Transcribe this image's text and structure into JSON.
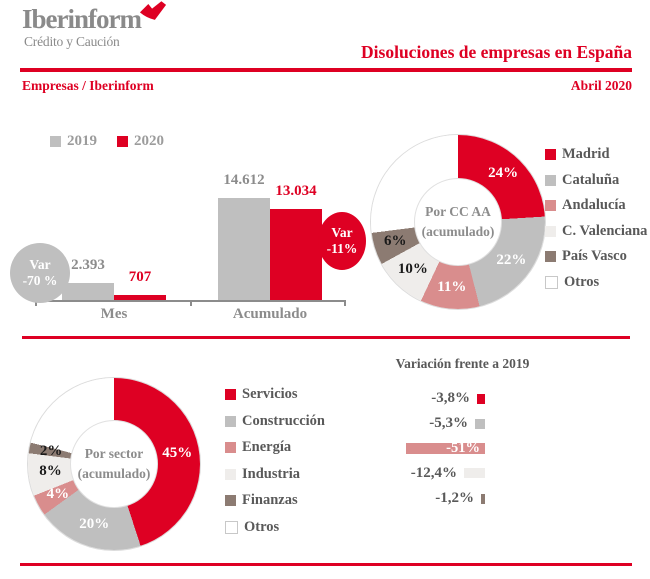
{
  "brand": {
    "name": "Iberinform",
    "tagline": "Crédito y Caución",
    "logo_mark_icon": "red-checkmark"
  },
  "header": {
    "title": "Disoluciones de empresas en España",
    "breadcrumb": "Empresas / Iberinform",
    "date": "Abril 2020"
  },
  "colors": {
    "brand_red": "#DE0023",
    "gray": "#BFBFBF",
    "pink": "#D98D8D",
    "light_gray": "#EFEDEB",
    "taupe": "#8C7B72",
    "white": "#FFFFFF",
    "text_dark_gray": "#595959",
    "text_mid_gray": "#8C8C8C"
  },
  "chart_data": [
    {
      "id": "dissolutions-grouped-bar",
      "type": "bar",
      "legend": [
        {
          "name": "2019",
          "color": "#BFBFBF"
        },
        {
          "name": "2020",
          "color": "#DE0023"
        }
      ],
      "categories": [
        "Mes",
        "Acumulado"
      ],
      "series": [
        {
          "name": "2019",
          "values": [
            2393,
            14612
          ],
          "labels": [
            "2.393",
            "14.612"
          ],
          "color": "#BFBFBF",
          "label_color": "#8C8C8C"
        },
        {
          "name": "2020",
          "values": [
            707,
            13034
          ],
          "labels": [
            "707",
            "13.034"
          ],
          "color": "#DE0023",
          "label_color": "#DE0023"
        }
      ],
      "ylim": [
        0,
        14612
      ],
      "annotations": [
        {
          "lines": [
            "Var",
            "-70 %"
          ],
          "color": "#BFBFBF"
        },
        {
          "lines": [
            "Var",
            "-11%"
          ],
          "color": "#DE0023"
        }
      ]
    },
    {
      "id": "por-ccaa-donut",
      "type": "pie",
      "center_lines": [
        "Por CC AA",
        "(acumulado)"
      ],
      "slices": [
        {
          "name": "Madrid",
          "value": 24,
          "label": "24%",
          "color": "#DE0023",
          "label_color": "#FFFFFF"
        },
        {
          "name": "Cataluña",
          "value": 22,
          "label": "22%",
          "color": "#BFBFBF",
          "label_color": "#FFFFFF"
        },
        {
          "name": "Andalucía",
          "value": 11,
          "label": "11%",
          "color": "#D98D8D",
          "label_color": "#FFFFFF"
        },
        {
          "name": "C. Valenciana",
          "value": 10,
          "label": "10%",
          "color": "#EFEDEB",
          "label_color": "#1A1A1A"
        },
        {
          "name": "País Vasco",
          "value": 6,
          "label": "6%",
          "color": "#8C7B72",
          "label_color": "#1A1A1A"
        },
        {
          "name": "Otros",
          "value": 27,
          "label": "",
          "color": "#FFFFFF",
          "label_color": ""
        }
      ],
      "legend_position": "right"
    },
    {
      "id": "por-sector-donut",
      "type": "pie",
      "center_lines": [
        "Por sector",
        "(acumulado)"
      ],
      "slices": [
        {
          "name": "Servicios",
          "value": 45,
          "label": "45%",
          "color": "#DE0023",
          "label_color": "#FFFFFF"
        },
        {
          "name": "Construcción",
          "value": 20,
          "label": "20%",
          "color": "#BFBFBF",
          "label_color": "#FFFFFF"
        },
        {
          "name": "Energía",
          "value": 4,
          "label": "4%",
          "color": "#D98D8D",
          "label_color": "#FFFFFF"
        },
        {
          "name": "Industria",
          "value": 8,
          "label": "8%",
          "color": "#EFEDEB",
          "label_color": "#1A1A1A"
        },
        {
          "name": "Finanzas",
          "value": 2,
          "label": "2%",
          "color": "#8C7B72",
          "label_color": "#1A1A1A"
        },
        {
          "name": "Otros",
          "value": 21,
          "label": "",
          "color": "#FFFFFF",
          "label_color": ""
        }
      ],
      "legend_position": "right"
    },
    {
      "id": "variacion-bars",
      "type": "bar",
      "title": "Variación frente a 2019",
      "orientation": "horizontal-negative",
      "categories": [
        "Servicios",
        "Construcción",
        "Energía",
        "Industria",
        "Finanzas"
      ],
      "values": [
        -3.8,
        -5.3,
        -51,
        -12.4,
        -1.2
      ],
      "labels": [
        "-3,8%",
        "-5,3%",
        "-51%",
        "-12,4%",
        "-1,2%"
      ],
      "colors": [
        "#DE0023",
        "#BFBFBF",
        "#D98D8D",
        "#EFEDEB",
        "#8C7B72"
      ],
      "label_inside": [
        false,
        false,
        true,
        false,
        false
      ]
    }
  ]
}
